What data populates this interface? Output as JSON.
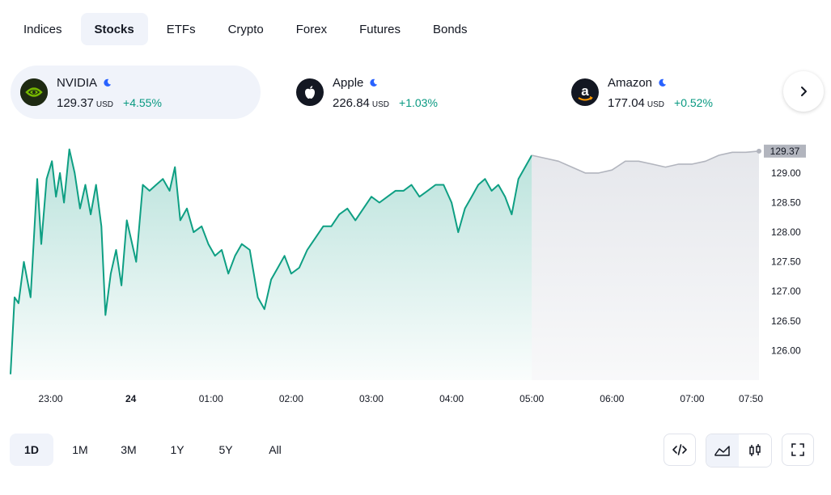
{
  "tabs": [
    {
      "label": "Indices"
    },
    {
      "label": "Stocks"
    },
    {
      "label": "ETFs"
    },
    {
      "label": "Crypto"
    },
    {
      "label": "Forex"
    },
    {
      "label": "Futures"
    },
    {
      "label": "Bonds"
    }
  ],
  "active_tab": "Stocks",
  "symbols": [
    {
      "name": "NVIDIA",
      "price": "129.37",
      "currency": "USD",
      "change": "+4.55%",
      "logo": "nvidia-logo",
      "market_status": "moon-icon"
    },
    {
      "name": "Apple",
      "price": "226.84",
      "currency": "USD",
      "change": "+1.03%",
      "logo": "apple-logo",
      "market_status": "moon-icon"
    },
    {
      "name": "Amazon",
      "price": "177.04",
      "currency": "USD",
      "change": "+0.52%",
      "logo": "amazon-logo",
      "market_status": "moon-icon"
    }
  ],
  "ranges": [
    {
      "label": "1D"
    },
    {
      "label": "1M"
    },
    {
      "label": "3M"
    },
    {
      "label": "1Y"
    },
    {
      "label": "5Y"
    },
    {
      "label": "All"
    }
  ],
  "active_range": "1D",
  "colors": {
    "up": "#089981",
    "session_line": "#0e9f83",
    "extended_line": "#b2b5be",
    "last_price_badge": "#b2b5be"
  },
  "chart_data": {
    "type": "area",
    "ylim": [
      125.5,
      129.6
    ],
    "y_ticks": [
      "126.00",
      "126.50",
      "127.00",
      "127.50",
      "128.00",
      "128.50",
      "129.00"
    ],
    "last_price_label": "129.37",
    "x_tick_labels": [
      "23:00",
      "24",
      "01:00",
      "02:00",
      "03:00",
      "04:00",
      "05:00",
      "06:00",
      "07:00",
      "07:50"
    ],
    "series": [
      {
        "session": "regular",
        "points": [
          [
            "22:30",
            125.6
          ],
          [
            "22:33",
            126.9
          ],
          [
            "22:36",
            126.8
          ],
          [
            "22:40",
            127.5
          ],
          [
            "22:45",
            126.9
          ],
          [
            "22:50",
            128.9
          ],
          [
            "22:53",
            127.8
          ],
          [
            "22:57",
            128.9
          ],
          [
            "23:01",
            129.2
          ],
          [
            "23:04",
            128.6
          ],
          [
            "23:07",
            129.0
          ],
          [
            "23:10",
            128.5
          ],
          [
            "23:14",
            129.4
          ],
          [
            "23:18",
            129.0
          ],
          [
            "23:22",
            128.4
          ],
          [
            "23:26",
            128.8
          ],
          [
            "23:30",
            128.3
          ],
          [
            "23:34",
            128.8
          ],
          [
            "23:38",
            128.1
          ],
          [
            "23:41",
            126.6
          ],
          [
            "23:45",
            127.3
          ],
          [
            "23:49",
            127.7
          ],
          [
            "23:53",
            127.1
          ],
          [
            "23:57",
            128.2
          ],
          [
            "00:00",
            127.9
          ],
          [
            "00:04",
            127.5
          ],
          [
            "00:09",
            128.8
          ],
          [
            "00:14",
            128.7
          ],
          [
            "00:19",
            128.8
          ],
          [
            "00:24",
            128.9
          ],
          [
            "00:29",
            128.7
          ],
          [
            "00:33",
            129.1
          ],
          [
            "00:37",
            128.2
          ],
          [
            "00:42",
            128.4
          ],
          [
            "00:47",
            128.0
          ],
          [
            "00:53",
            128.1
          ],
          [
            "00:58",
            127.8
          ],
          [
            "01:03",
            127.6
          ],
          [
            "01:08",
            127.7
          ],
          [
            "01:13",
            127.3
          ],
          [
            "01:18",
            127.6
          ],
          [
            "01:23",
            127.8
          ],
          [
            "01:29",
            127.7
          ],
          [
            "01:35",
            126.9
          ],
          [
            "01:40",
            126.7
          ],
          [
            "01:45",
            127.2
          ],
          [
            "01:50",
            127.4
          ],
          [
            "01:55",
            127.6
          ],
          [
            "02:00",
            127.3
          ],
          [
            "02:06",
            127.4
          ],
          [
            "02:12",
            127.7
          ],
          [
            "02:18",
            127.9
          ],
          [
            "02:24",
            128.1
          ],
          [
            "02:30",
            128.1
          ],
          [
            "02:36",
            128.3
          ],
          [
            "02:42",
            128.4
          ],
          [
            "02:48",
            128.2
          ],
          [
            "02:54",
            128.4
          ],
          [
            "03:00",
            128.6
          ],
          [
            "03:06",
            128.5
          ],
          [
            "03:12",
            128.6
          ],
          [
            "03:18",
            128.7
          ],
          [
            "03:24",
            128.7
          ],
          [
            "03:30",
            128.8
          ],
          [
            "03:36",
            128.6
          ],
          [
            "03:42",
            128.7
          ],
          [
            "03:48",
            128.8
          ],
          [
            "03:54",
            128.8
          ],
          [
            "04:00",
            128.5
          ],
          [
            "04:05",
            128.0
          ],
          [
            "04:10",
            128.4
          ],
          [
            "04:15",
            128.6
          ],
          [
            "04:20",
            128.8
          ],
          [
            "04:25",
            128.9
          ],
          [
            "04:30",
            128.7
          ],
          [
            "04:35",
            128.8
          ],
          [
            "04:40",
            128.6
          ],
          [
            "04:45",
            128.3
          ],
          [
            "04:50",
            128.9
          ],
          [
            "05:00",
            129.3
          ]
        ]
      },
      {
        "session": "extended",
        "points": [
          [
            "05:00",
            129.3
          ],
          [
            "05:10",
            129.25
          ],
          [
            "05:20",
            129.2
          ],
          [
            "05:30",
            129.1
          ],
          [
            "05:40",
            129.0
          ],
          [
            "05:50",
            129.0
          ],
          [
            "06:00",
            129.05
          ],
          [
            "06:10",
            129.2
          ],
          [
            "06:20",
            129.2
          ],
          [
            "06:30",
            129.15
          ],
          [
            "06:40",
            129.1
          ],
          [
            "06:50",
            129.15
          ],
          [
            "07:00",
            129.15
          ],
          [
            "07:10",
            129.2
          ],
          [
            "07:20",
            129.3
          ],
          [
            "07:30",
            129.35
          ],
          [
            "07:40",
            129.35
          ],
          [
            "07:50",
            129.37
          ]
        ]
      }
    ]
  }
}
